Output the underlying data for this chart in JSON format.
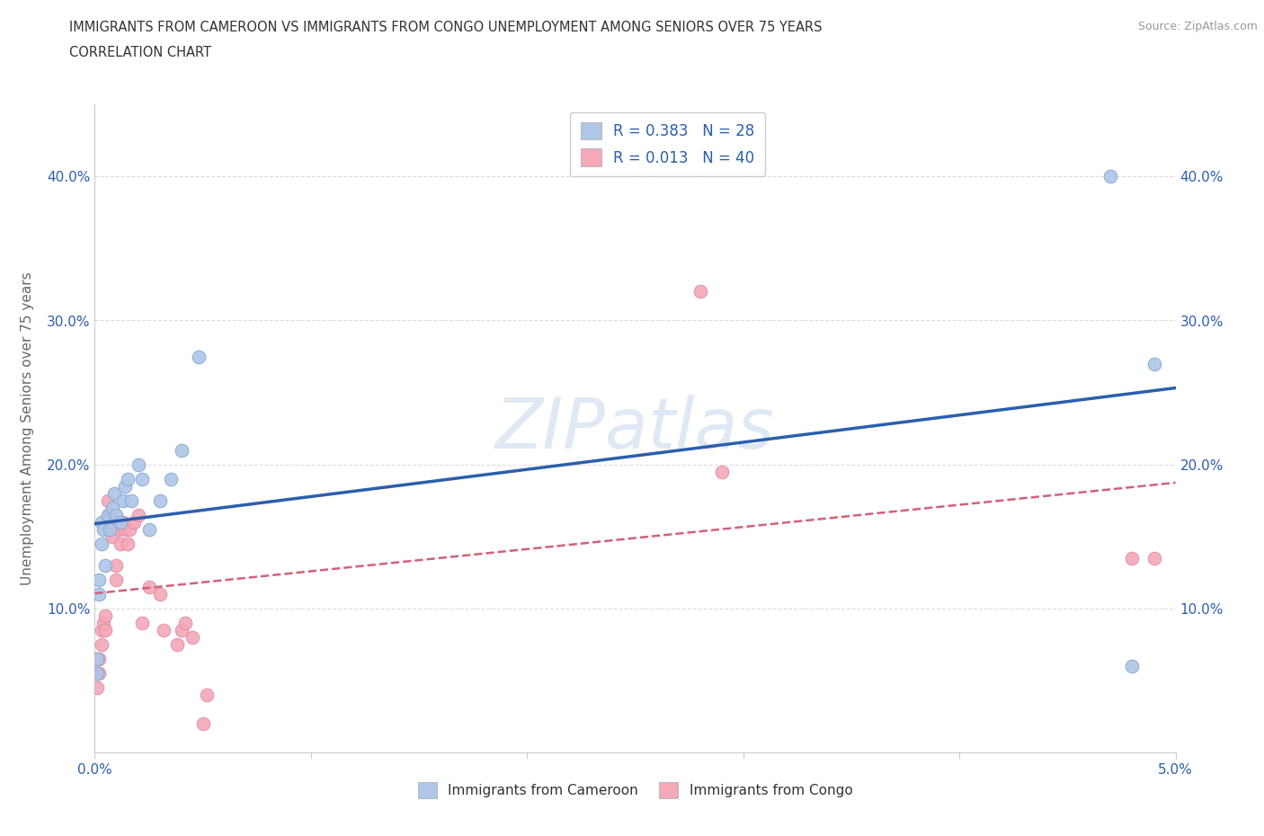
{
  "title_line1": "IMMIGRANTS FROM CAMEROON VS IMMIGRANTS FROM CONGO UNEMPLOYMENT AMONG SENIORS OVER 75 YEARS",
  "title_line2": "CORRELATION CHART",
  "source": "Source: ZipAtlas.com",
  "ylabel": "Unemployment Among Seniors over 75 years",
  "xlim": [
    0.0,
    0.05
  ],
  "ylim": [
    0.0,
    0.45
  ],
  "xticks": [
    0.0,
    0.01,
    0.02,
    0.03,
    0.04,
    0.05
  ],
  "xticklabels": [
    "0.0%",
    "",
    "",
    "",
    "",
    "5.0%"
  ],
  "yticks": [
    0.0,
    0.1,
    0.2,
    0.3,
    0.4
  ],
  "yticklabels_left": [
    "",
    "10.0%",
    "20.0%",
    "30.0%",
    "40.0%"
  ],
  "yticklabels_right": [
    "",
    "10.0%",
    "20.0%",
    "30.0%",
    "40.0%"
  ],
  "background_color": "#ffffff",
  "grid_color": "#dddddd",
  "watermark": "ZIPatlas",
  "cameroon_color": "#aec6e8",
  "congo_color": "#f4a8b8",
  "trend_cameroon_color": "#2b5fad",
  "trend_congo_color": "#d4607a",
  "legend_text_color": "#2b5fad",
  "legend_R_cameroon": "R = 0.383   N = 28",
  "legend_R_congo": "R = 0.013   N = 40",
  "cameroon_x": [
    0.0001,
    0.0001,
    0.0002,
    0.0002,
    0.0003,
    0.0003,
    0.0004,
    0.0005,
    0.0006,
    0.0007,
    0.0008,
    0.0009,
    0.001,
    0.0012,
    0.0013,
    0.0014,
    0.0015,
    0.0017,
    0.002,
    0.0022,
    0.0025,
    0.003,
    0.0035,
    0.004,
    0.0048,
    0.047,
    0.048,
    0.049
  ],
  "cameroon_y": [
    0.065,
    0.055,
    0.12,
    0.11,
    0.16,
    0.145,
    0.155,
    0.13,
    0.165,
    0.155,
    0.17,
    0.18,
    0.165,
    0.16,
    0.175,
    0.185,
    0.19,
    0.175,
    0.2,
    0.19,
    0.155,
    0.175,
    0.19,
    0.21,
    0.275,
    0.4,
    0.06,
    0.27
  ],
  "congo_x": [
    0.0001,
    0.0001,
    0.0001,
    0.0002,
    0.0002,
    0.0003,
    0.0003,
    0.0004,
    0.0005,
    0.0005,
    0.0006,
    0.0006,
    0.0007,
    0.0007,
    0.0008,
    0.0009,
    0.001,
    0.001,
    0.0011,
    0.0012,
    0.0013,
    0.0014,
    0.0015,
    0.0016,
    0.0018,
    0.002,
    0.0022,
    0.0025,
    0.003,
    0.0032,
    0.0038,
    0.004,
    0.0042,
    0.0045,
    0.005,
    0.0052,
    0.028,
    0.029,
    0.048,
    0.049
  ],
  "congo_y": [
    0.055,
    0.045,
    0.065,
    0.055,
    0.065,
    0.075,
    0.085,
    0.09,
    0.085,
    0.095,
    0.16,
    0.175,
    0.155,
    0.165,
    0.15,
    0.16,
    0.12,
    0.13,
    0.155,
    0.145,
    0.16,
    0.155,
    0.145,
    0.155,
    0.16,
    0.165,
    0.09,
    0.115,
    0.11,
    0.085,
    0.075,
    0.085,
    0.09,
    0.08,
    0.02,
    0.04,
    0.32,
    0.195,
    0.135,
    0.135
  ]
}
